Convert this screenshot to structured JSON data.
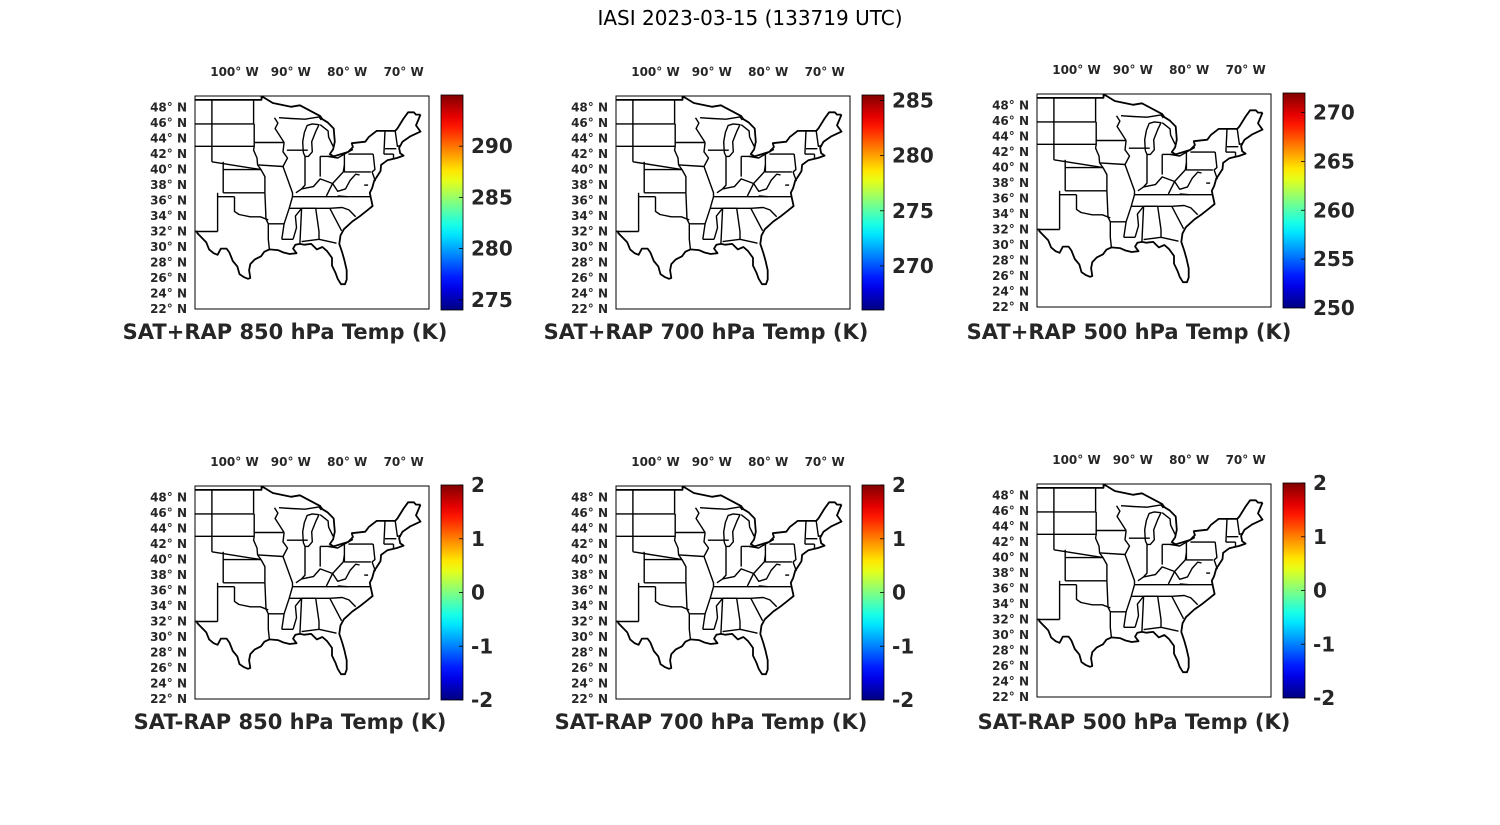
{
  "figure_title": "IASI 2023-03-15 (133719 UTC)",
  "longitude_labels": [
    "100° W",
    "90° W",
    "80° W",
    "70° W"
  ],
  "latitude_labels": [
    "48° N",
    "46° N",
    "44° N",
    "42° N",
    "40° N",
    "38° N",
    "36° N",
    "34° N",
    "32° N",
    "30° N",
    "28° N",
    "26° N",
    "24° N",
    "22° N"
  ],
  "colormap": "jet",
  "panels": [
    {
      "title": "SAT+RAP 850 hPa Temp (K)",
      "colorbar_ticks": [
        "290",
        "285",
        "280",
        "275"
      ],
      "colorbar_range": [
        274,
        295
      ]
    },
    {
      "title": "SAT+RAP 700 hPa Temp (K)",
      "colorbar_ticks": [
        "285",
        "280",
        "275",
        "270"
      ],
      "colorbar_range": [
        266,
        285.5
      ]
    },
    {
      "title": "SAT+RAP 500 hPa Temp (K)",
      "colorbar_ticks": [
        "270",
        "265",
        "260",
        "255",
        "250"
      ],
      "colorbar_range": [
        250,
        272
      ]
    },
    {
      "title": "SAT-RAP 850 hPa Temp (K)",
      "colorbar_ticks": [
        "2",
        "1",
        "0",
        "-1",
        "-2"
      ],
      "colorbar_range": [
        -2,
        2
      ]
    },
    {
      "title": "SAT-RAP 700 hPa Temp (K)",
      "colorbar_ticks": [
        "2",
        "1",
        "0",
        "-1",
        "-2"
      ],
      "colorbar_range": [
        -2,
        2
      ]
    },
    {
      "title": "SAT-RAP 500 hPa Temp (K)",
      "colorbar_ticks": [
        "2",
        "1",
        "0",
        "-1",
        "-2"
      ],
      "colorbar_range": [
        -2,
        2
      ]
    }
  ]
}
